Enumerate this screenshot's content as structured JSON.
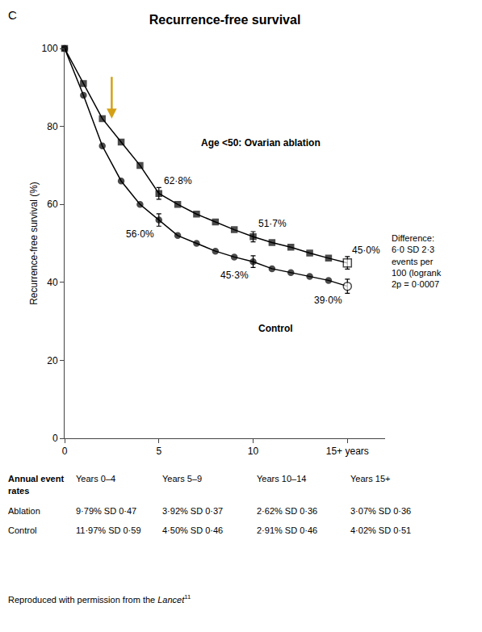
{
  "chart_data": {
    "type": "line",
    "title": "Recurrence-free survival",
    "panel_label": "C",
    "y_label": "Recurrence-free survival (%)",
    "x": [
      0,
      1,
      2,
      3,
      4,
      5,
      6,
      7,
      8,
      9,
      10,
      11,
      12,
      13,
      14,
      15
    ],
    "xlim": [
      0,
      17
    ],
    "xticks": [
      0,
      5,
      10,
      {
        "value": 15,
        "label": "15+ years"
      }
    ],
    "ylim": [
      0,
      100
    ],
    "yticks": [
      0,
      20,
      40,
      60,
      80,
      100
    ],
    "grid": false,
    "data_labels": true,
    "series": [
      {
        "name": "Age <50: Ovarian ablation",
        "color": "#000000",
        "marker": "square",
        "line_style": "solid",
        "values": [
          100,
          91,
          82,
          76,
          70,
          62.8,
          60,
          57.5,
          55.5,
          53.5,
          51.7,
          50.2,
          49.0,
          47.5,
          46.2,
          45.0
        ],
        "errors": [
          null,
          null,
          null,
          null,
          null,
          1.5,
          null,
          null,
          null,
          null,
          1.3,
          null,
          null,
          null,
          null,
          1.6
        ],
        "value_labels": [
          null,
          null,
          null,
          null,
          null,
          "62·8%",
          null,
          null,
          null,
          null,
          "51·7%",
          null,
          null,
          null,
          null,
          "45·0%"
        ]
      },
      {
        "name": "Control",
        "color": "#000000",
        "marker": "circle",
        "line_style": "solid",
        "values": [
          100,
          88,
          75,
          66,
          60,
          56.0,
          52,
          50,
          48,
          46.5,
          45.3,
          43.5,
          42.5,
          41.5,
          40.5,
          39.0
        ],
        "errors": [
          null,
          null,
          null,
          null,
          null,
          1.6,
          null,
          null,
          null,
          null,
          1.5,
          null,
          null,
          null,
          null,
          1.8
        ],
        "value_labels": [
          null,
          null,
          null,
          null,
          null,
          "56·0%",
          null,
          null,
          null,
          null,
          "45·3%",
          null,
          null,
          null,
          null,
          "39·0%"
        ]
      }
    ],
    "arrow": {
      "x": 2.5,
      "from": 93,
      "to": 82,
      "color": "#D4A017"
    },
    "difference_note": [
      "Difference:",
      "6·0 SD 2·3",
      "events per",
      "100 (logrank",
      "2p = 0·0007"
    ],
    "table": {
      "title_lines": [
        "Annual event",
        "rates"
      ],
      "columns": [
        "Years 0–4",
        "Years 5–9",
        "Years 10–14",
        "Years 15+"
      ],
      "rows": [
        {
          "name": "Ablation",
          "cells": [
            "9·79% SD 0·47",
            "3·92% SD 0·37",
            "2·62% SD 0·36",
            "3·07% SD 0·36"
          ]
        },
        {
          "name": "Control",
          "cells": [
            "11·97% SD 0·59",
            "4·50% SD 0·46",
            "2·91% SD 0·46",
            "4·02% SD 0·51"
          ]
        }
      ]
    },
    "source": {
      "text": "Reproduced with permission from the ",
      "italic": "Lancet",
      "ref": "11"
    }
  }
}
